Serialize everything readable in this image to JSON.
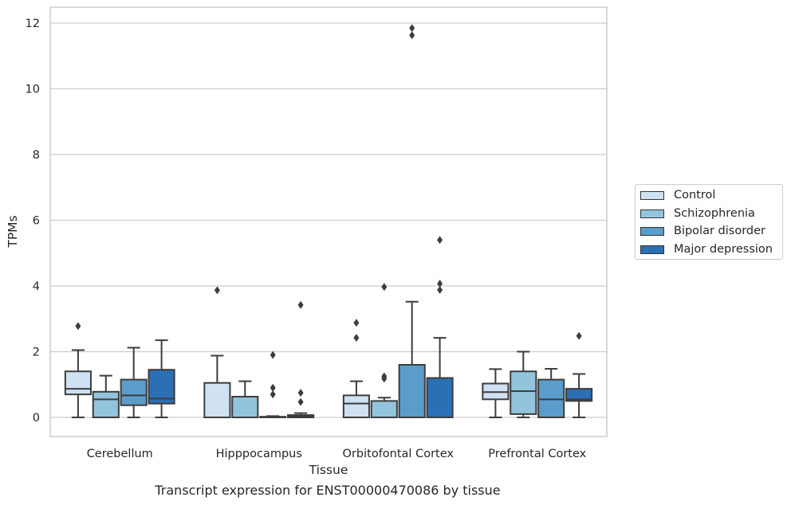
{
  "chart_data": {
    "type": "boxplot",
    "title": "",
    "xlabel": "Tissue",
    "ylabel": "TPMs",
    "caption": "Transcript expression for ENST00000470086 by tissue",
    "ylim": [
      -0.55,
      12.45
    ],
    "yticks": [
      0,
      2,
      4,
      6,
      8,
      10,
      12
    ],
    "grid": true,
    "legend_position": "right",
    "categories": [
      "Cerebellum",
      "Hipppocampus",
      "Orbitofontal Cortex",
      "Prefrontal Cortex"
    ],
    "series": [
      {
        "name": "Control",
        "color": "#cfe1f2",
        "boxes": [
          {
            "whislo": 0.0,
            "q1": 0.7,
            "med": 0.87,
            "q3": 1.4,
            "whishi": 2.05,
            "fliers": [
              2.78
            ]
          },
          {
            "whislo": 0.0,
            "q1": 0.0,
            "med": 0.0,
            "q3": 1.05,
            "whishi": 1.88,
            "fliers": [
              3.87
            ]
          },
          {
            "whislo": 0.0,
            "q1": 0.0,
            "med": 0.42,
            "q3": 0.67,
            "whishi": 1.1,
            "fliers": [
              2.42,
              2.88
            ]
          },
          {
            "whislo": 0.0,
            "q1": 0.55,
            "med": 0.77,
            "q3": 1.03,
            "whishi": 1.47,
            "fliers": []
          }
        ]
      },
      {
        "name": "Schizophrenia",
        "color": "#93c4de",
        "boxes": [
          {
            "whislo": 0.0,
            "q1": 0.0,
            "med": 0.55,
            "q3": 0.78,
            "whishi": 1.27,
            "fliers": []
          },
          {
            "whislo": 0.0,
            "q1": 0.0,
            "med": 0.0,
            "q3": 0.63,
            "whishi": 1.1,
            "fliers": []
          },
          {
            "whislo": 0.0,
            "q1": 0.0,
            "med": 0.0,
            "q3": 0.5,
            "whishi": 0.6,
            "fliers": [
              1.18,
              1.25,
              3.97
            ]
          },
          {
            "whislo": 0.0,
            "q1": 0.1,
            "med": 0.8,
            "q3": 1.4,
            "whishi": 2.0,
            "fliers": []
          }
        ]
      },
      {
        "name": "Bipolar disorder",
        "color": "#5a9dcb",
        "boxes": [
          {
            "whislo": 0.0,
            "q1": 0.37,
            "med": 0.67,
            "q3": 1.15,
            "whishi": 2.12,
            "fliers": []
          },
          {
            "whislo": 0.0,
            "q1": 0.0,
            "med": 0.0,
            "q3": 0.02,
            "whishi": 0.04,
            "fliers": [
              0.7,
              0.9,
              1.9
            ]
          },
          {
            "whislo": 0.0,
            "q1": 0.0,
            "med": 0.0,
            "q3": 1.6,
            "whishi": 3.52,
            "fliers": [
              11.63,
              11.85
            ]
          },
          {
            "whislo": 0.0,
            "q1": 0.0,
            "med": 0.55,
            "q3": 1.15,
            "whishi": 1.48,
            "fliers": []
          }
        ]
      },
      {
        "name": "Major depression",
        "color": "#2b6fb4",
        "boxes": [
          {
            "whislo": 0.0,
            "q1": 0.42,
            "med": 0.57,
            "q3": 1.45,
            "whishi": 2.35,
            "fliers": []
          },
          {
            "whislo": 0.0,
            "q1": 0.0,
            "med": 0.04,
            "q3": 0.07,
            "whishi": 0.13,
            "fliers": [
              0.47,
              0.75,
              3.42
            ]
          },
          {
            "whislo": 0.0,
            "q1": 0.0,
            "med": 0.0,
            "q3": 1.2,
            "whishi": 2.42,
            "fliers": [
              3.88,
              4.07,
              5.4
            ]
          },
          {
            "whislo": 0.0,
            "q1": 0.5,
            "med": 0.55,
            "q3": 0.87,
            "whishi": 1.32,
            "fliers": [
              2.48
            ]
          }
        ]
      }
    ]
  }
}
